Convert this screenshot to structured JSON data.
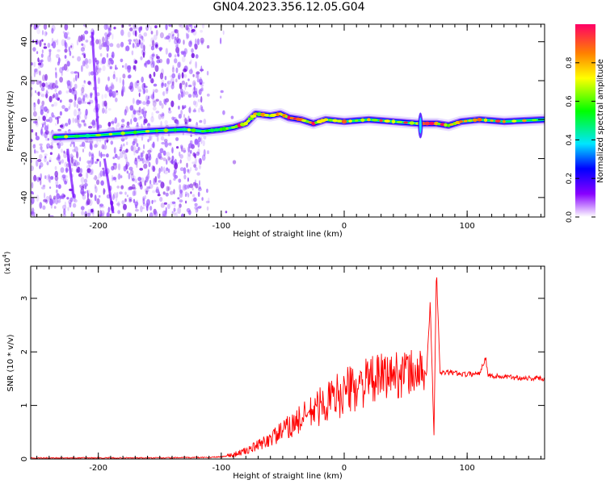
{
  "title": "GN04.2023.356.12.05.G04",
  "chart_data": [
    {
      "type": "heatmap",
      "xlabel": "Height of straight line (km)",
      "ylabel": "Frequency (Hz)",
      "xlim": [
        -255,
        163
      ],
      "ylim": [
        -50,
        49
      ],
      "xticks": [
        -200,
        -100,
        0,
        100
      ],
      "yticks": [
        -40,
        -20,
        0,
        20,
        40
      ],
      "ridge": [
        {
          "x": -235,
          "y": -9
        },
        {
          "x": -200,
          "y": -8
        },
        {
          "x": -160,
          "y": -6
        },
        {
          "x": -130,
          "y": -5
        },
        {
          "x": -115,
          "y": -6
        },
        {
          "x": -100,
          "y": -5
        },
        {
          "x": -90,
          "y": -4
        },
        {
          "x": -80,
          "y": -2
        },
        {
          "x": -72,
          "y": 3
        },
        {
          "x": -60,
          "y": 2
        },
        {
          "x": -52,
          "y": 3
        },
        {
          "x": -45,
          "y": 1
        },
        {
          "x": -35,
          "y": 0
        },
        {
          "x": -25,
          "y": -2
        },
        {
          "x": -15,
          "y": 0
        },
        {
          "x": 0,
          "y": -1
        },
        {
          "x": 20,
          "y": 0
        },
        {
          "x": 40,
          "y": -1
        },
        {
          "x": 60,
          "y": -2
        },
        {
          "x": 75,
          "y": -2
        },
        {
          "x": 85,
          "y": -3
        },
        {
          "x": 95,
          "y": -1
        },
        {
          "x": 110,
          "y": 0
        },
        {
          "x": 130,
          "y": -1
        },
        {
          "x": 163,
          "y": 0
        }
      ],
      "colorbar": {
        "label": "Normalized spectral amplitude",
        "ticks": [
          "0.0",
          "0.2",
          "0.4",
          "0.6",
          "0.8"
        ],
        "range": [
          0,
          1
        ],
        "colormap": "rainbow"
      }
    },
    {
      "type": "line",
      "xlabel": "Height of straight line (km)",
      "ylabel": "SNR (10 * v/v)",
      "yscale_label": "(x10",
      "yscale_exp": "4",
      "yscale_close": ")",
      "xlim": [
        -255,
        163
      ],
      "ylim": [
        0,
        3.6
      ],
      "xticks": [
        -200,
        -100,
        0,
        100
      ],
      "yticks": [
        0,
        1,
        2,
        3
      ],
      "color": "#ff0000",
      "series": [
        {
          "x": [
            -255,
            -200,
            -150,
            -110,
            -100,
            -90,
            -80,
            -70,
            -60,
            -50,
            -40,
            -30,
            -20,
            -10,
            0,
            10,
            20,
            30,
            40,
            50,
            60,
            67,
            70,
            73,
            75,
            78,
            85,
            100,
            110,
            115,
            117,
            120,
            140,
            163
          ],
          "y": [
            0.02,
            0.02,
            0.02,
            0.03,
            0.04,
            0.08,
            0.15,
            0.25,
            0.38,
            0.52,
            0.68,
            0.82,
            0.98,
            1.12,
            1.25,
            1.35,
            1.45,
            1.52,
            1.58,
            1.6,
            1.62,
            1.6,
            2.95,
            0.4,
            3.55,
            1.6,
            1.62,
            1.58,
            1.6,
            1.9,
            1.58,
            1.55,
            1.52,
            1.5
          ]
        }
      ]
    }
  ]
}
